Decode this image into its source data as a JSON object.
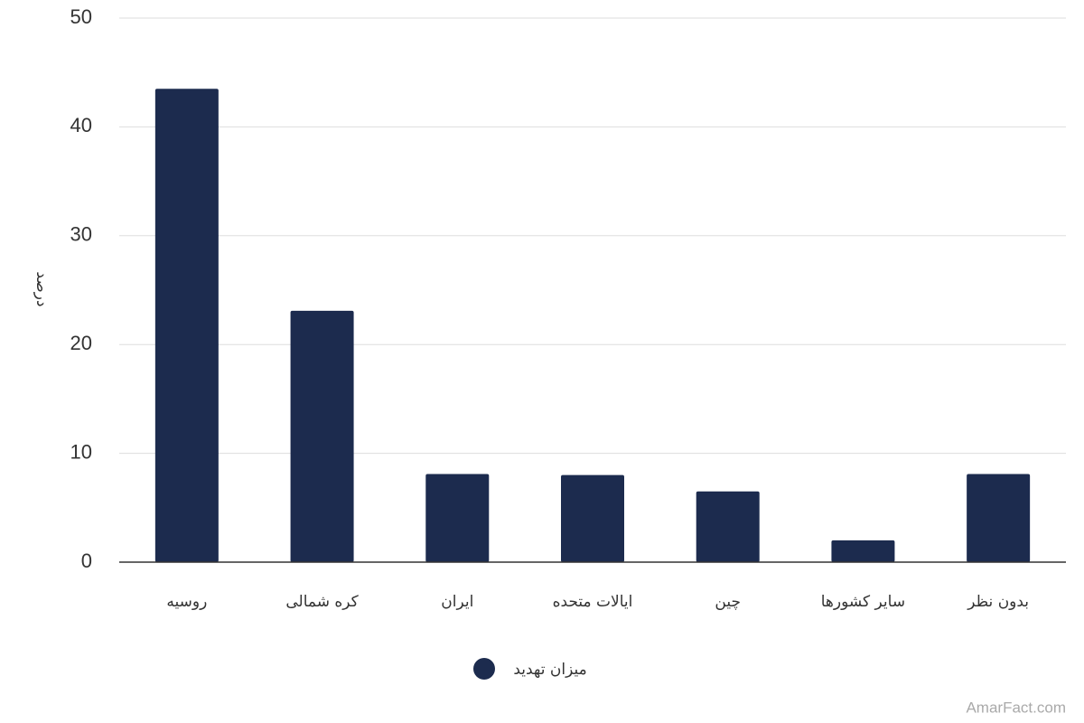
{
  "chart_data": {
    "type": "bar",
    "y_label": "درصد",
    "categories": [
      "روسیه",
      "کره شمالی",
      "ایران",
      "ایالات متحده",
      "چین",
      "سایر کشورها",
      "بدون نظر"
    ],
    "series": [
      {
        "name": "میزان تهدید",
        "color": "#1c2b4e",
        "values": [
          43.5,
          23.1,
          8.1,
          8.0,
          6.5,
          2.0,
          8.1
        ]
      }
    ],
    "ylim": [
      0,
      50
    ],
    "yticks": [
      0,
      10,
      20,
      30,
      40,
      50
    ],
    "grid": true,
    "legend": "bottom",
    "watermark": "AmarFact.com"
  }
}
